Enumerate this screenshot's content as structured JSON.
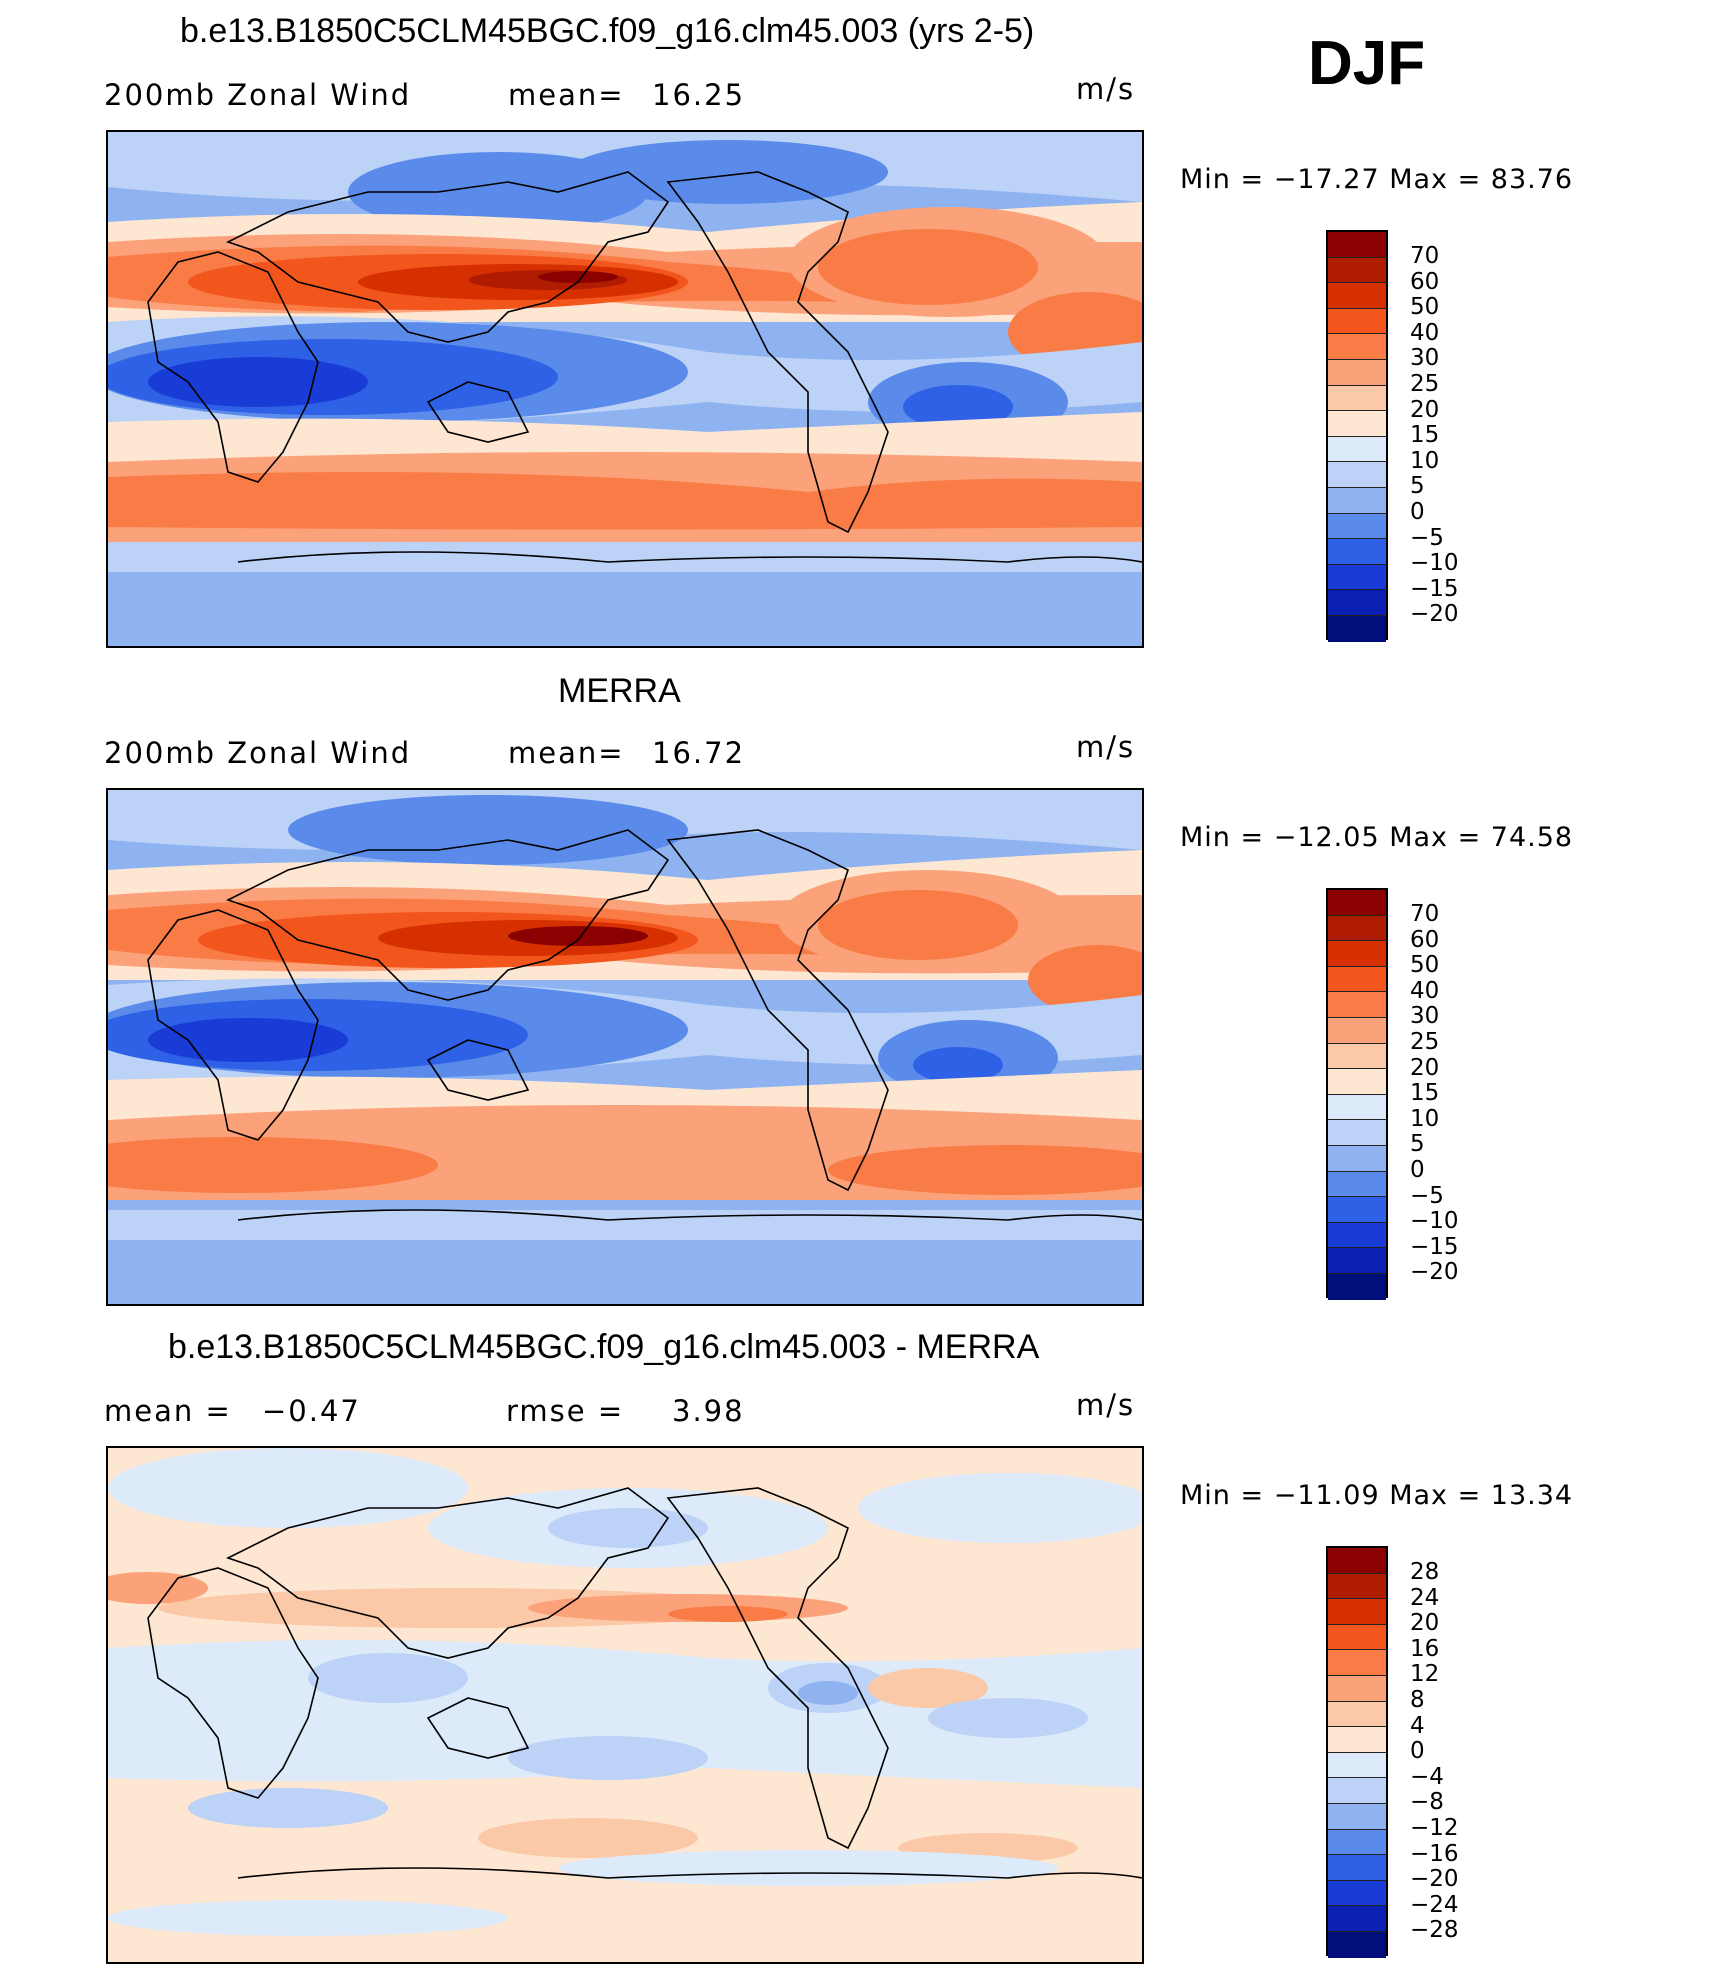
{
  "season": "DJF",
  "panels": [
    {
      "title": "b.e13.B1850C5CLM45BGC.f09_g16.clm45.003 (yrs 2-5)",
      "variable": "200mb Zonal Wind",
      "stat_label": "mean=",
      "stat_value": "16.25",
      "stat2_label": "",
      "stat2_value": "",
      "units": "m/s",
      "min_max": "Min = −17.27 Max =  83.76",
      "colorbar_labels": [
        "70",
        "60",
        "50",
        "40",
        "30",
        "25",
        "20",
        "15",
        "10",
        "5",
        "0",
        "−5",
        "−10",
        "−15",
        "−20"
      ]
    },
    {
      "title": "MERRA",
      "variable": "200mb Zonal Wind",
      "stat_label": "mean=",
      "stat_value": "16.72",
      "stat2_label": "",
      "stat2_value": "",
      "units": "m/s",
      "min_max": "Min = −12.05 Max =  74.58",
      "colorbar_labels": [
        "70",
        "60",
        "50",
        "40",
        "30",
        "25",
        "20",
        "15",
        "10",
        "5",
        "0",
        "−5",
        "−10",
        "−15",
        "−20"
      ]
    },
    {
      "title": "b.e13.B1850C5CLM45BGC.f09_g16.clm45.003 - MERRA",
      "variable": "",
      "stat_label": "mean =",
      "stat_value": "−0.47",
      "stat2_label": "rmse =",
      "stat2_value": "3.98",
      "units": "m/s",
      "min_max": "Min = −11.09 Max =  13.34",
      "colorbar_labels": [
        "28",
        "24",
        "20",
        "16",
        "12",
        "8",
        "4",
        "0",
        "−4",
        "−8",
        "−12",
        "−16",
        "−20",
        "−24",
        "−28"
      ]
    }
  ],
  "colorbar_colors": [
    "#8b0000",
    "#b01c00",
    "#d63000",
    "#f2561d",
    "#f97b45",
    "#fba27a",
    "#fbc8a8",
    "#fde6d2",
    "#dceaf9",
    "#bcd2f6",
    "#8fb3f1",
    "#5a8bea",
    "#2e61e6",
    "#1a3cd6",
    "#0b20b2",
    "#000f7a"
  ],
  "colors": {
    "positive_strong": "#c81e00",
    "positive_mid": "#f46a3a",
    "positive_weak": "#fbc0a0",
    "neutral": "#fde6d2",
    "negative_weak": "#c9dbf7",
    "negative_mid": "#6f97ec",
    "negative_strong": "#1d3fe0"
  }
}
